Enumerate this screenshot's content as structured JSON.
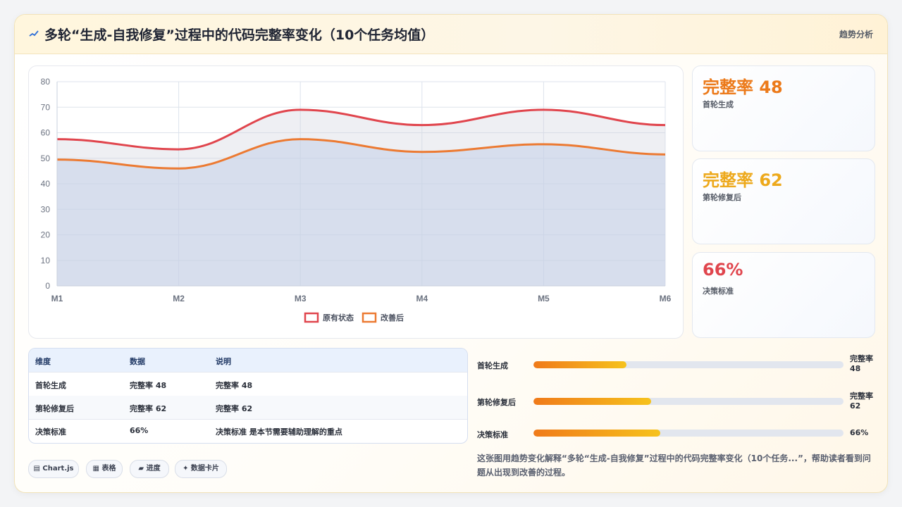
{
  "header": {
    "title": "多轮“生成-自我修复”过程中的代码完整率变化（10个任务均值）",
    "link": "趋势分析"
  },
  "chart_data": {
    "type": "area",
    "categories": [
      "M1",
      "M2",
      "M3",
      "M4",
      "M5",
      "M6"
    ],
    "series": [
      {
        "name": "原有状态",
        "values": [
          57.5,
          53.5,
          69,
          63,
          69,
          63
        ],
        "color": "#e0454d"
      },
      {
        "name": "改善后",
        "values": [
          49.5,
          46,
          57.5,
          52.5,
          55.5,
          51.5
        ],
        "color": "#ec7a32"
      }
    ],
    "ylim": [
      0,
      80
    ],
    "yticks": [
      0,
      10,
      20,
      30,
      40,
      50,
      60,
      70,
      80
    ],
    "grid": true,
    "legend": "bottom"
  },
  "stats": [
    {
      "value": "完整率 48",
      "label": "首轮生成",
      "color": "#ec7a1a"
    },
    {
      "value": "完整率 62",
      "label": "第轮修复后",
      "color": "#eda91c"
    },
    {
      "value": "66%",
      "label": "决策标准",
      "color": "#e0454d"
    }
  ],
  "table": {
    "headers": [
      "维度",
      "数据",
      "说明"
    ],
    "rows": [
      [
        "首轮生成",
        "完整率 48",
        "完整率 48"
      ],
      [
        "第轮修复后",
        "完整率 62",
        "完整率 62"
      ],
      [
        "决策标准",
        "66%",
        "决策标准 是本节需要辅助理解的重点"
      ]
    ]
  },
  "tags": [
    "▤ Chart.js",
    "▦ 表格",
    "▰ 进度",
    "✦ 数据卡片"
  ],
  "progress": [
    {
      "label": "首轮生成",
      "value": "完整率 48",
      "fraction": 0.3
    },
    {
      "label": "第轮修复后",
      "value": "完整率 62",
      "fraction": 0.38
    },
    {
      "label": "决策标准",
      "value": "66%",
      "fraction": 0.41
    }
  ],
  "summary": "这张图用趋势变化解释“多轮“生成-自我修复”过程中的代码完整率变化（10个任务...”，帮助读者看到问题从出现到改善的过程。"
}
